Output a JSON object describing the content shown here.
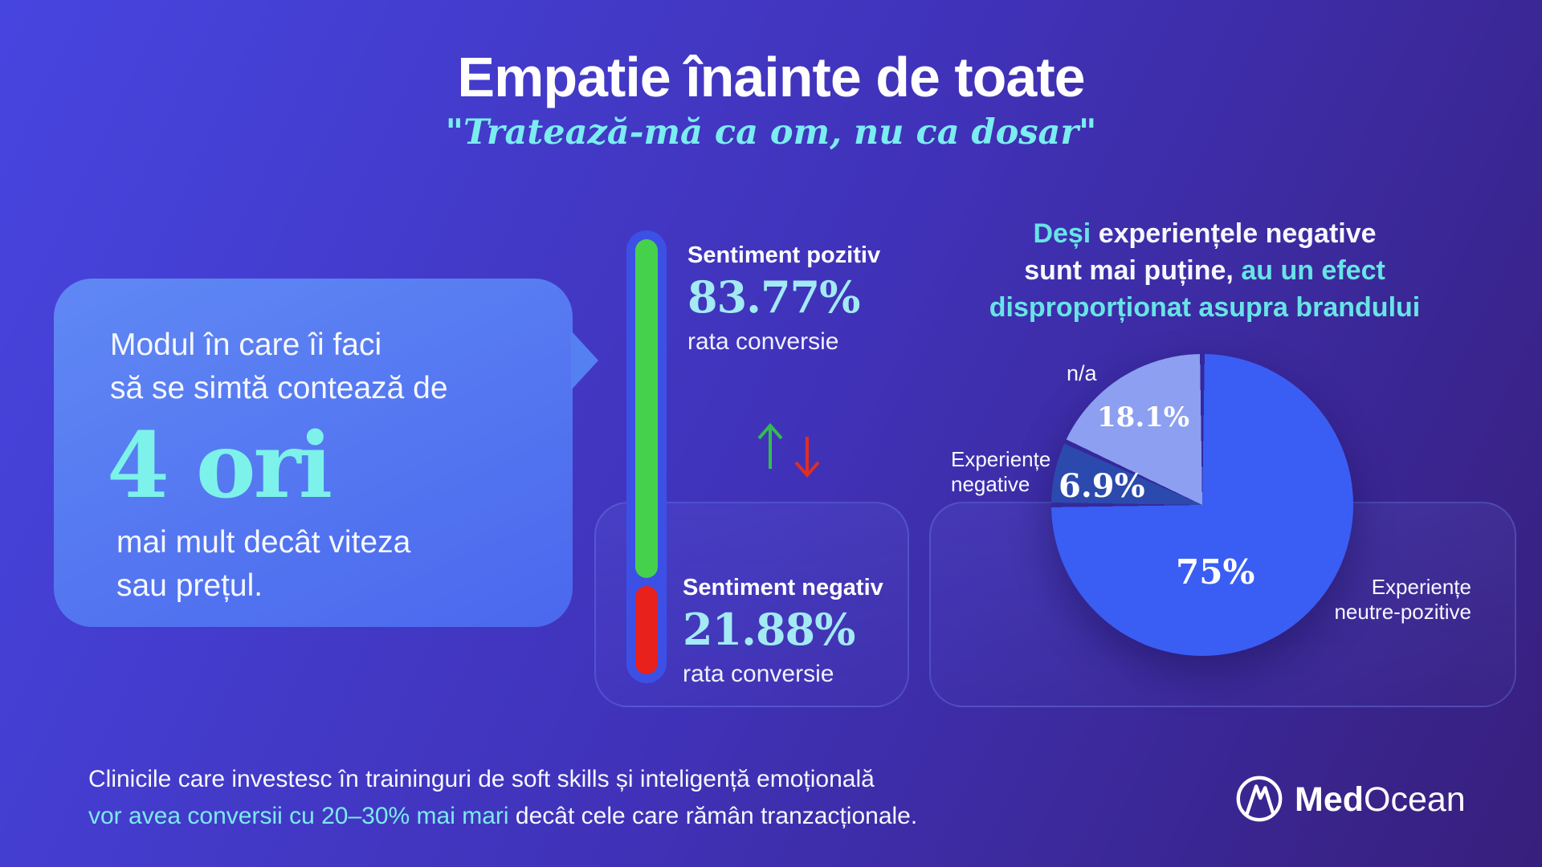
{
  "page": {
    "title": "Empatie înainte de toate",
    "subtitle": "\"Tratează-mă ca om, nu ca dosar\""
  },
  "quote_card": {
    "line1": "Modul în care îi faci",
    "line2": "să se simtă contează de",
    "highlight": "4 ori",
    "line3": "mai mult decât viteza",
    "line4": "sau prețul."
  },
  "sentiment_gauge": {
    "positive": {
      "label": "Sentiment pozitiv",
      "value": "83.77%",
      "caption": "rata conversie"
    },
    "negative": {
      "label": "Sentiment negativ",
      "value": "21.88%",
      "caption": "rata conversie"
    }
  },
  "pie_section": {
    "heading": {
      "part1_cyan": "Deși",
      "part1_white": " experiențele negative",
      "part2_white": "sunt mai puține,",
      "part2_cyan": " au un efect",
      "part3_cyan": "disproporționat asupra brandului"
    },
    "labels": {
      "na": "n/a",
      "na_value": "18.1%",
      "negative": "Experiențe\nnegative",
      "negative_value": "6.9%",
      "main_value": "75%",
      "main": "Experiențe\nneutre-pozitive"
    }
  },
  "footer": {
    "line1": "Clinicile care investesc în traininguri de soft skills și inteligență emoțională",
    "line2_highlight": "vor avea conversii cu 20–30% mai mari",
    "line2_rest": " decât cele care rămân tranzacționale."
  },
  "brand": {
    "name_bold": "Med",
    "name_light": "Ocean"
  },
  "colors": {
    "accent_cyan": "#7DEDEF",
    "stat_cyan": "#A3EAF4",
    "positive_green": "#46D14C",
    "negative_red": "#E8211D",
    "gauge_track": "#3C50E6",
    "pie_main": "#3A5EF4",
    "pie_negative": "#2C4AAD",
    "pie_na": "#8C9FF0",
    "bubble_blue": "#5580F2",
    "bg_top_left": "#4745E0",
    "bg_bottom_right": "#371F7C"
  },
  "chart_data": [
    {
      "type": "pie",
      "title": "Deși experiențele negative sunt mai puține, au un efect disproporționat asupra brandului",
      "unit": "%",
      "direction": "clockwise",
      "start_angle_deg": 0,
      "slices": [
        {
          "label": "Experiențe neutre-pozitive",
          "value": 75,
          "color": "#3A5EF4"
        },
        {
          "label": "Experiențe negative",
          "value": 6.9,
          "color": "#2C4AAD"
        },
        {
          "label": "n/a",
          "value": 18.1,
          "color": "#8C9FF0"
        }
      ]
    },
    {
      "type": "bar",
      "title": "rata conversie",
      "orientation": "vertical",
      "categories": [
        "Sentiment pozitiv",
        "Sentiment negativ"
      ],
      "values": [
        83.77,
        21.88
      ],
      "unit": "%",
      "colors": [
        "#46D14C",
        "#E8211D"
      ]
    }
  ]
}
